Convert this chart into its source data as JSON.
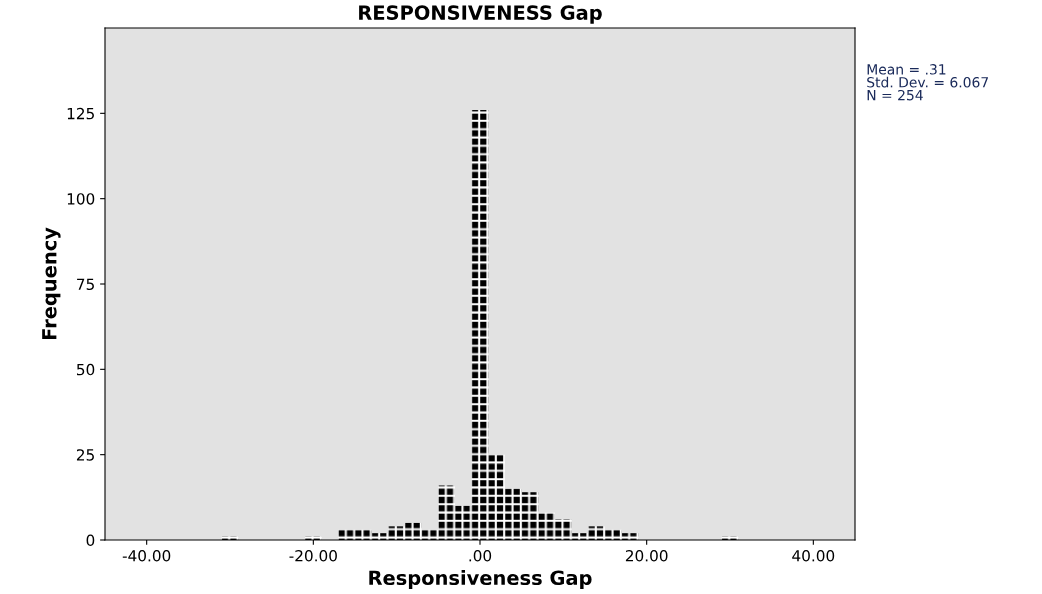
{
  "chart_data": {
    "type": "histogram",
    "title": "RESPONSIVENESS Gap",
    "xlabel": "Responsiveness Gap",
    "ylabel": "Frequency",
    "bins": [
      -31,
      -29,
      -27,
      -25,
      -23,
      -21,
      -19,
      -17,
      -15,
      -13,
      -11,
      -9,
      -7,
      -5,
      -3,
      -1,
      1,
      3,
      5,
      7,
      9,
      11,
      13,
      15,
      17,
      19,
      21,
      23,
      25,
      27,
      29,
      31
    ],
    "values": [
      1,
      0,
      0,
      0,
      0,
      1,
      0,
      3,
      3,
      2,
      4,
      5,
      3,
      16,
      10,
      126,
      25,
      15,
      14,
      8,
      6,
      2,
      4,
      3,
      2,
      0,
      0,
      0,
      0,
      0,
      1
    ],
    "color": "#000000",
    "xlim": [
      -45,
      45
    ],
    "xticks": [
      {
        "value": -40,
        "label": "-40.00"
      },
      {
        "value": -20,
        "label": "-20.00"
      },
      {
        "value": 0,
        "label": ".00"
      },
      {
        "value": 20,
        "label": "20.00"
      },
      {
        "value": 40,
        "label": "40.00"
      }
    ],
    "ylim": [
      0,
      150
    ],
    "yticks": [
      0,
      25,
      50,
      75,
      100,
      125
    ],
    "grid": false,
    "legend": false,
    "annotations": [
      "Mean = .31\nStd. Dev. = 6.067\nN = 254"
    ]
  }
}
